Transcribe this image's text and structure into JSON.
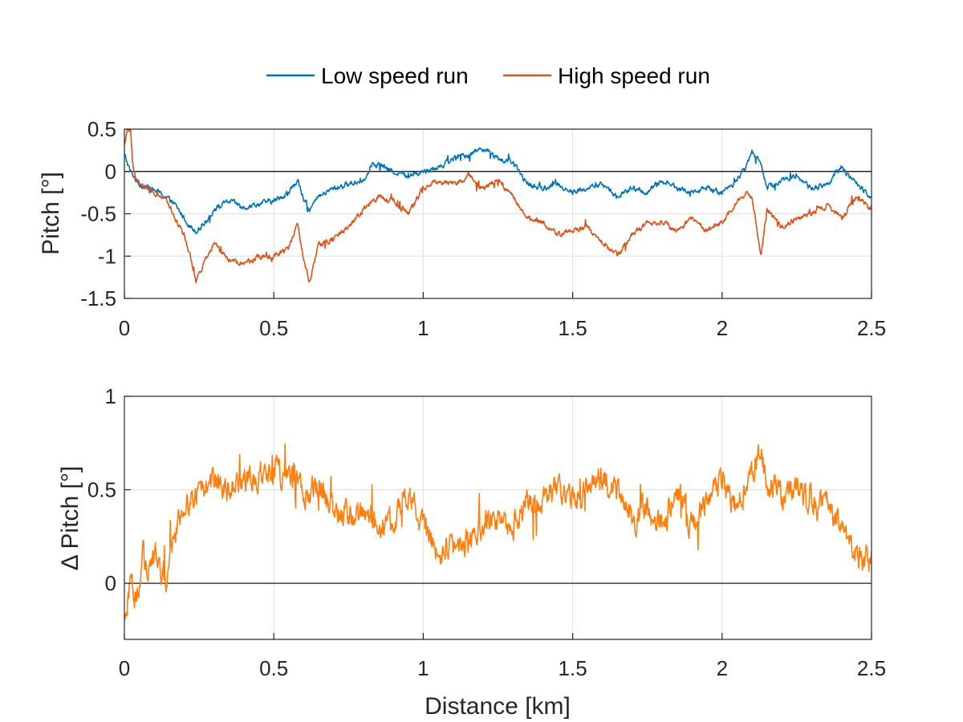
{
  "legend": {
    "items": [
      {
        "label": "Low speed run",
        "color": "#0072BD"
      },
      {
        "label": "High speed run",
        "color": "#D95319"
      }
    ]
  },
  "chart_data": [
    {
      "id": "top",
      "type": "line",
      "title": "",
      "xlabel": "",
      "ylabel": "Pitch [°]",
      "xlim": [
        0,
        2.5
      ],
      "ylim": [
        -1.5,
        0.5
      ],
      "xticks": [
        0,
        0.5,
        1,
        1.5,
        2,
        2.5
      ],
      "xtick_labels": [
        "0",
        "0.5",
        "1",
        "1.5",
        "2",
        "2.5"
      ],
      "yticks": [
        0.5,
        0,
        -0.5,
        -1,
        -1.5
      ],
      "ytick_labels": [
        "0.5",
        "0",
        "-0.5",
        "-1",
        "-1.5"
      ],
      "grid": true,
      "reference_line_y": 0,
      "series": [
        {
          "name": "Low speed run",
          "color": "#0072BD",
          "x": [
            0,
            0.02,
            0.05,
            0.1,
            0.14,
            0.17,
            0.2,
            0.22,
            0.24,
            0.27,
            0.3,
            0.35,
            0.4,
            0.45,
            0.5,
            0.55,
            0.58,
            0.6,
            0.62,
            0.65,
            0.7,
            0.75,
            0.8,
            0.83,
            0.85,
            0.9,
            0.95,
            1.0,
            1.05,
            1.1,
            1.15,
            1.2,
            1.25,
            1.3,
            1.35,
            1.4,
            1.45,
            1.5,
            1.55,
            1.6,
            1.65,
            1.7,
            1.75,
            1.8,
            1.85,
            1.9,
            1.95,
            2.0,
            2.05,
            2.08,
            2.1,
            2.13,
            2.15,
            2.2,
            2.25,
            2.3,
            2.35,
            2.4,
            2.45,
            2.5
          ],
          "y": [
            0.2,
            0.0,
            -0.15,
            -0.22,
            -0.3,
            -0.4,
            -0.55,
            -0.65,
            -0.7,
            -0.6,
            -0.45,
            -0.35,
            -0.42,
            -0.38,
            -0.35,
            -0.25,
            -0.1,
            -0.35,
            -0.45,
            -0.3,
            -0.2,
            -0.15,
            -0.1,
            0.1,
            0.08,
            0.0,
            -0.05,
            0.0,
            0.05,
            0.15,
            0.2,
            0.28,
            0.15,
            0.1,
            -0.15,
            -0.2,
            -0.15,
            -0.25,
            -0.2,
            -0.15,
            -0.3,
            -0.2,
            -0.25,
            -0.1,
            -0.2,
            -0.25,
            -0.2,
            -0.25,
            -0.1,
            0.05,
            0.25,
            0.1,
            -0.2,
            -0.1,
            -0.05,
            -0.2,
            -0.15,
            0.05,
            -0.15,
            -0.3
          ]
        },
        {
          "name": "High speed run",
          "color": "#D95319",
          "x": [
            0,
            0.01,
            0.02,
            0.03,
            0.05,
            0.1,
            0.14,
            0.17,
            0.2,
            0.22,
            0.24,
            0.27,
            0.3,
            0.35,
            0.4,
            0.45,
            0.5,
            0.55,
            0.58,
            0.6,
            0.62,
            0.65,
            0.7,
            0.75,
            0.8,
            0.85,
            0.9,
            0.95,
            1.0,
            1.05,
            1.1,
            1.15,
            1.2,
            1.25,
            1.3,
            1.35,
            1.4,
            1.45,
            1.5,
            1.55,
            1.6,
            1.65,
            1.7,
            1.75,
            1.8,
            1.85,
            1.9,
            1.95,
            2.0,
            2.05,
            2.08,
            2.1,
            2.13,
            2.15,
            2.2,
            2.25,
            2.3,
            2.35,
            2.4,
            2.45,
            2.5
          ],
          "y": [
            0.3,
            0.5,
            0.5,
            0.0,
            -0.15,
            -0.25,
            -0.35,
            -0.55,
            -0.75,
            -1.0,
            -1.3,
            -1.05,
            -0.85,
            -1.05,
            -1.1,
            -1.0,
            -1.0,
            -0.9,
            -0.6,
            -1.05,
            -1.3,
            -0.85,
            -0.8,
            -0.65,
            -0.45,
            -0.3,
            -0.35,
            -0.5,
            -0.2,
            -0.1,
            -0.15,
            -0.05,
            -0.2,
            -0.1,
            -0.3,
            -0.55,
            -0.6,
            -0.75,
            -0.7,
            -0.65,
            -0.85,
            -1.0,
            -0.75,
            -0.6,
            -0.6,
            -0.7,
            -0.55,
            -0.7,
            -0.6,
            -0.35,
            -0.25,
            -0.3,
            -1.0,
            -0.45,
            -0.65,
            -0.55,
            -0.5,
            -0.4,
            -0.55,
            -0.3,
            -0.45
          ]
        }
      ]
    },
    {
      "id": "bottom",
      "type": "line",
      "title": "",
      "xlabel": "Distance [km]",
      "ylabel": "Δ Pitch [°]",
      "xlim": [
        0,
        2.5
      ],
      "ylim": [
        -0.3,
        1.0
      ],
      "xticks": [
        0,
        0.5,
        1,
        1.5,
        2,
        2.5
      ],
      "xtick_labels": [
        "0",
        "0.5",
        "1",
        "1.5",
        "2",
        "2.5"
      ],
      "yticks": [
        1,
        0.5,
        0
      ],
      "ytick_labels": [
        "1",
        "0.5",
        "0"
      ],
      "grid": true,
      "reference_line_y": 0,
      "series": [
        {
          "name": "Δ Pitch",
          "color": "#FF7F0E",
          "x": [
            0,
            0.02,
            0.04,
            0.06,
            0.08,
            0.1,
            0.12,
            0.14,
            0.16,
            0.18,
            0.2,
            0.25,
            0.3,
            0.35,
            0.4,
            0.45,
            0.5,
            0.55,
            0.6,
            0.65,
            0.7,
            0.75,
            0.8,
            0.85,
            0.9,
            0.95,
            1.0,
            1.05,
            1.1,
            1.15,
            1.2,
            1.25,
            1.3,
            1.35,
            1.4,
            1.45,
            1.5,
            1.55,
            1.6,
            1.65,
            1.7,
            1.75,
            1.8,
            1.85,
            1.9,
            1.95,
            2.0,
            2.05,
            2.1,
            2.13,
            2.15,
            2.2,
            2.25,
            2.3,
            2.35,
            2.4,
            2.45,
            2.5
          ],
          "y": [
            -0.2,
            0.05,
            -0.1,
            0.15,
            0.05,
            0.15,
            0.1,
            0.0,
            0.2,
            0.3,
            0.45,
            0.5,
            0.55,
            0.5,
            0.55,
            0.6,
            0.62,
            0.55,
            0.5,
            0.5,
            0.4,
            0.35,
            0.35,
            0.3,
            0.35,
            0.45,
            0.3,
            0.15,
            0.2,
            0.2,
            0.3,
            0.35,
            0.3,
            0.45,
            0.45,
            0.5,
            0.45,
            0.55,
            0.55,
            0.5,
            0.35,
            0.4,
            0.3,
            0.5,
            0.3,
            0.45,
            0.55,
            0.4,
            0.6,
            0.7,
            0.55,
            0.45,
            0.5,
            0.45,
            0.4,
            0.35,
            0.15,
            0.1
          ]
        }
      ]
    }
  ]
}
